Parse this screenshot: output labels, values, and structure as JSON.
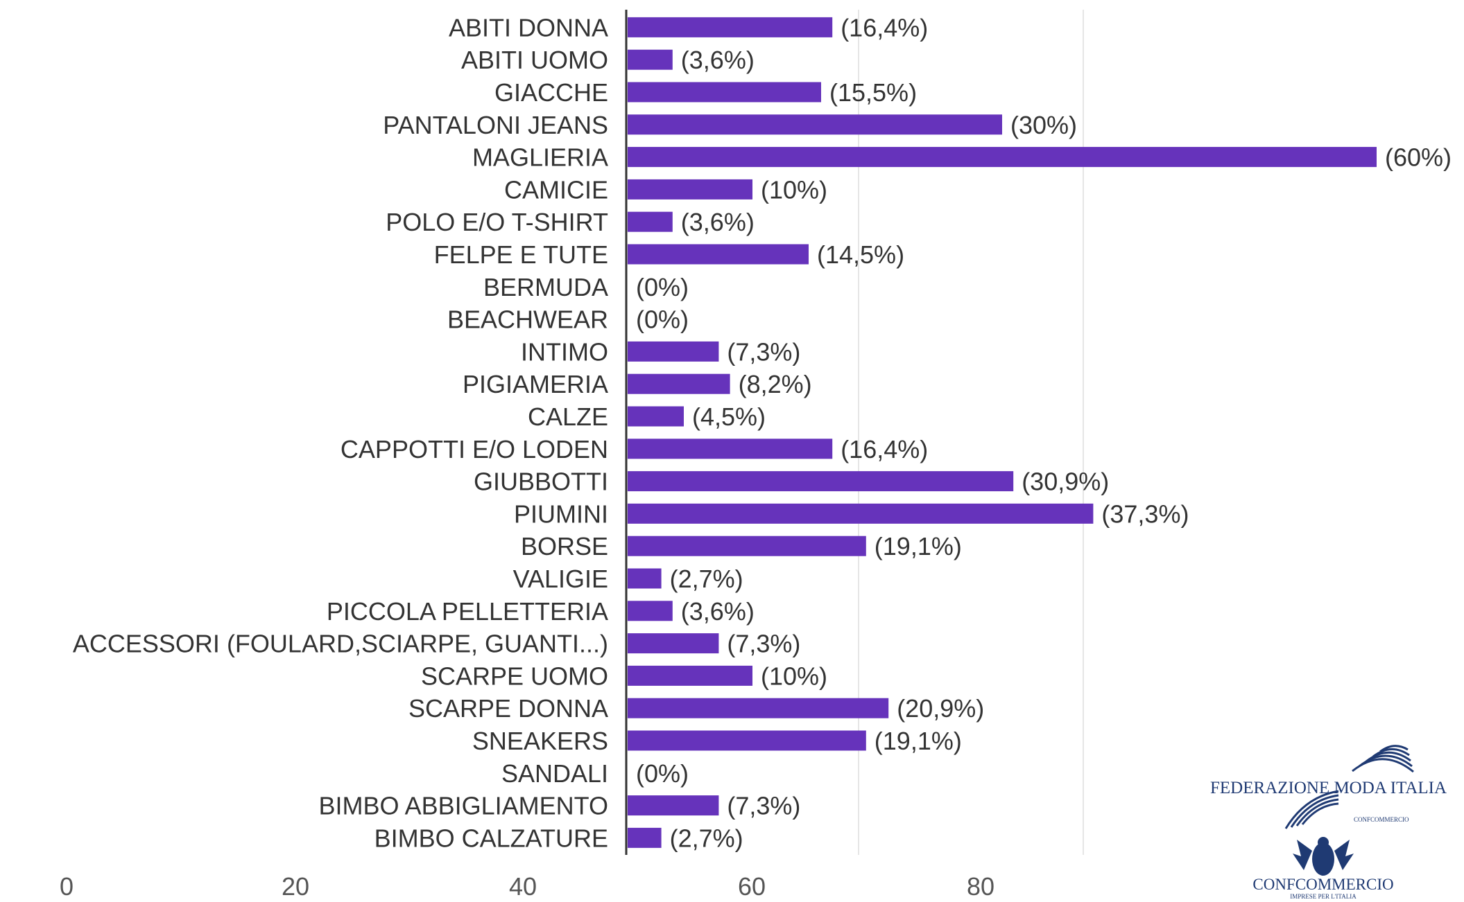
{
  "chart_data": {
    "type": "bar",
    "orientation": "horizontal",
    "categories": [
      "ABITI DONNA",
      "ABITI UOMO",
      "GIACCHE",
      "PANTALONI JEANS",
      "MAGLIERIA",
      "CAMICIE",
      "POLO E/O T-SHIRT",
      "FELPE E TUTE",
      "BERMUDA",
      "BEACHWEAR",
      "INTIMO",
      "PIGIAMERIA",
      "CALZE",
      "CAPPOTTI E/O LODEN",
      "GIUBBOTTI",
      "PIUMINI",
      "BORSE",
      "VALIGIE",
      "PICCOLA PELLETTERIA",
      "ACCESSORI (FOULARD,SCIARPE, GUANTI...)",
      "SCARPE UOMO",
      "SCARPE DONNA",
      "SNEAKERS",
      "SANDALI",
      "BIMBO ABBIGLIAMENTO",
      "BIMBO CALZATURE"
    ],
    "values": [
      16.4,
      3.6,
      15.5,
      30,
      60,
      10,
      3.6,
      14.5,
      0,
      0,
      7.3,
      8.2,
      4.5,
      16.4,
      30.9,
      37.3,
      19.1,
      2.7,
      3.6,
      7.3,
      10,
      20.9,
      19.1,
      0,
      7.3,
      2.7
    ],
    "value_labels": [
      "(16,4%)",
      "(3,6%)",
      "(15,5%)",
      "(30%)",
      "(60%)",
      "(10%)",
      "(3,6%)",
      "(14,5%)",
      "(0%)",
      "(0%)",
      "(7,3%)",
      "(8,2%)",
      "(4,5%)",
      "(16,4%)",
      "(30,9%)",
      "(37,3%)",
      "(19,1%)",
      "(2,7%)",
      "(3,6%)",
      "(7,3%)",
      "(10%)",
      "(20,9%)",
      "(19,1%)",
      "(0%)",
      "(7,3%)",
      "(2,7%)"
    ],
    "x_ticks": [
      "0",
      "20",
      "40",
      "60",
      "80"
    ],
    "xlim": [
      0,
      60
    ],
    "grid": true,
    "bar_color": "#6633bb"
  },
  "logos": {
    "federazione": "FEDERAZIONE MODA ITALIA",
    "federazione_sub": "CONFCOMMERCIO",
    "confcommercio": "CONFCOMMERCIO",
    "confcommercio_sub": "IMPRESE PER L'ITALIA"
  }
}
